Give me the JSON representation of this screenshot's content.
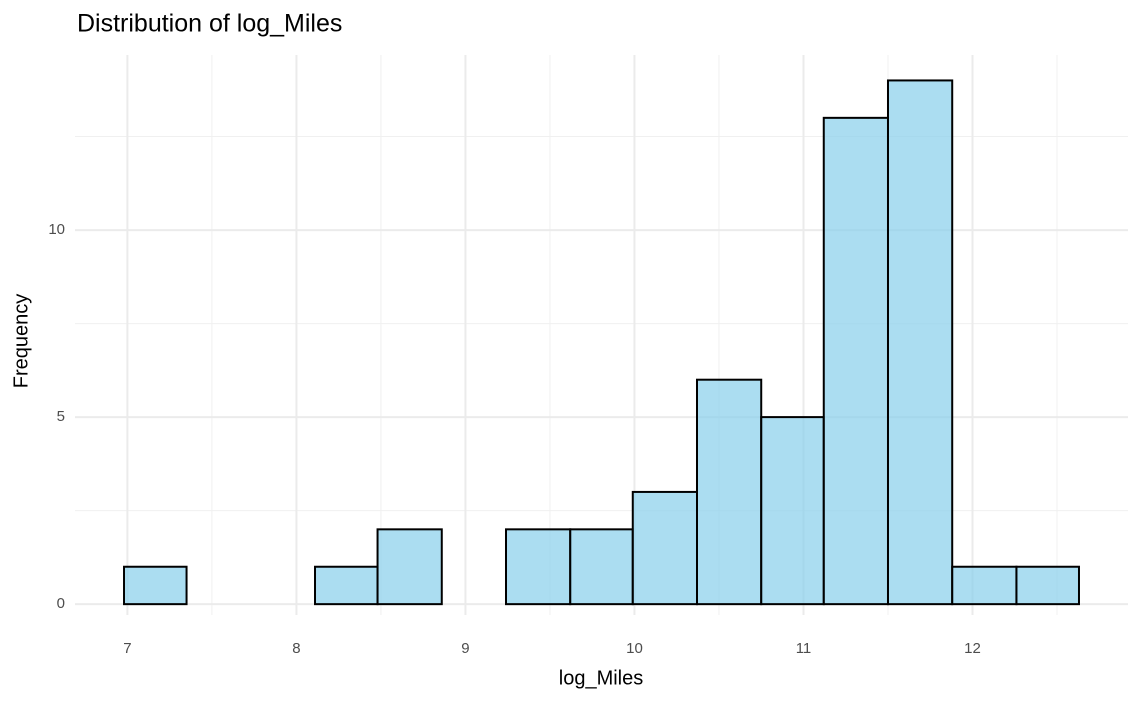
{
  "chart_data": {
    "type": "histogram",
    "title": "Distribution of log_Miles",
    "x_label": "log_Miles",
    "y_label": "Frequency",
    "bins": [
      6.98,
      7.35,
      7.73,
      8.11,
      8.48,
      8.86,
      9.24,
      9.62,
      9.99,
      10.37,
      10.75,
      11.12,
      11.5,
      11.88,
      12.26,
      12.63
    ],
    "values": [
      1,
      0,
      0,
      1,
      2,
      0,
      2,
      2,
      3,
      6,
      5,
      13,
      14,
      1,
      1
    ],
    "color": "#87ceeb",
    "alpha": 0.7,
    "edge_color": "#000000",
    "xlim": [
      6.69,
      12.92
    ],
    "ylim": [
      -0.29,
      14.68
    ],
    "xticks": [
      7,
      8,
      9,
      10,
      11,
      12
    ],
    "yticks": [
      0,
      5,
      10
    ],
    "x_minor_grid": [
      7.5,
      8.5,
      9.5,
      10.5,
      11.5,
      12.5
    ],
    "y_minor_grid": [
      2.5,
      7.5,
      12.5
    ],
    "grid": true
  }
}
